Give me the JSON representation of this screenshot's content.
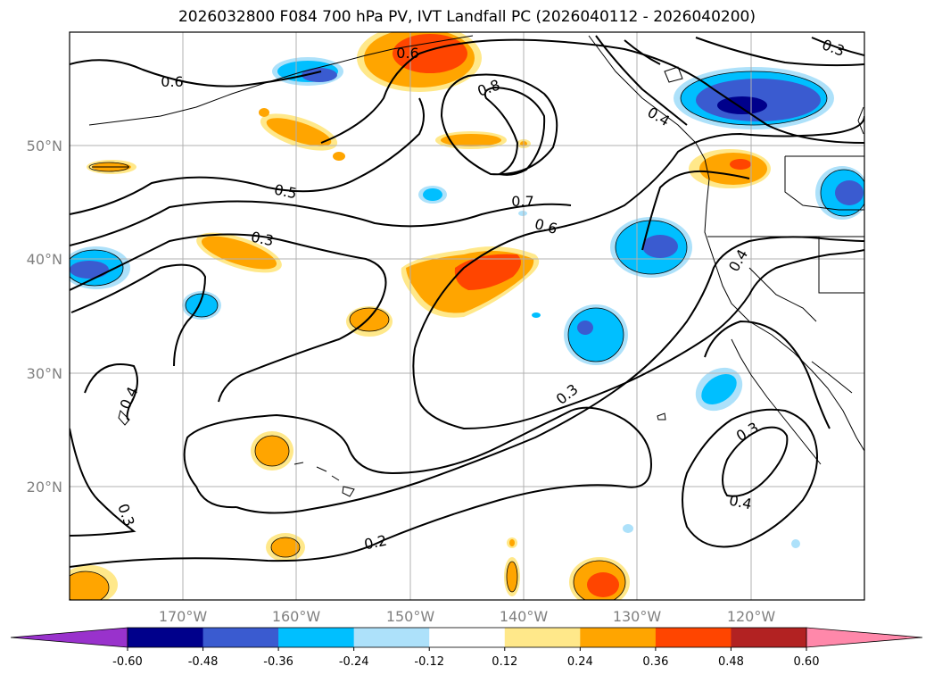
{
  "title": "2026032800 F084 700 hPa PV, IVT Landfall PC (2026040112 - 2026040200)",
  "map": {
    "projection": "PlateCarree",
    "lon_range": [
      -180,
      -110
    ],
    "lat_range": [
      10,
      60
    ],
    "lat_labels": [
      "50°N",
      "40°N",
      "30°N",
      "20°N"
    ],
    "lon_labels": [
      "170°W",
      "160°W",
      "150°W",
      "140°W",
      "130°W",
      "120°W"
    ]
  },
  "contours": {
    "variable": "700 hPa PV",
    "labels": [
      "0.6",
      "0.8",
      "0.5",
      "0.7",
      "0.3",
      "0.6",
      "0.4",
      "0.3",
      "0.3",
      "0.4",
      "0.3",
      "0.2",
      "0.4",
      "0.6",
      "0.3",
      "0.4"
    ]
  },
  "fill": {
    "variable": "IVT Landfall PC"
  },
  "colorbar": {
    "levels": [
      "-0.60",
      "-0.48",
      "-0.36",
      "-0.24",
      "-0.12",
      "0.12",
      "0.24",
      "0.36",
      "0.48",
      "0.60"
    ],
    "colors": [
      "#9932CC",
      "#00008B",
      "#3A5BD0",
      "#00BFFF",
      "#ADE1FA",
      "#FFFFFF",
      "#FFE88A",
      "#FFA500",
      "#FF4500",
      "#B22222",
      "#FF88AA"
    ]
  }
}
